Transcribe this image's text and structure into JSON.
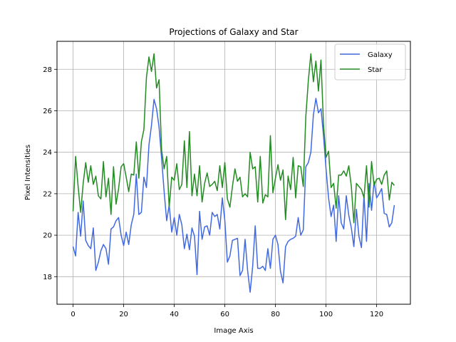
{
  "chart_data": {
    "type": "line",
    "title": "Projections of Galaxy and Star",
    "xlabel": "Image Axis",
    "ylabel": "Pixel Intensities",
    "xlim": [
      -6.35,
      133.35
    ],
    "ylim": [
      16.67,
      29.35
    ],
    "xticks": [
      0,
      20,
      40,
      60,
      80,
      100,
      120
    ],
    "yticks": [
      18,
      20,
      22,
      24,
      26,
      28
    ],
    "grid": true,
    "legend_position": "top-right",
    "series": [
      {
        "name": "Galaxy",
        "color": "#4169e1",
        "values": [
          19.45,
          19.0,
          21.1,
          19.95,
          21.65,
          19.75,
          19.5,
          19.35,
          20.35,
          18.3,
          18.7,
          19.25,
          19.55,
          19.35,
          18.6,
          20.3,
          20.4,
          20.7,
          20.85,
          20.0,
          19.5,
          20.15,
          19.55,
          20.5,
          21.0,
          22.95,
          21.0,
          21.1,
          22.8,
          22.3,
          24.35,
          25.3,
          26.55,
          26.1,
          25.2,
          23.7,
          22.1,
          20.7,
          21.45,
          20.15,
          20.85,
          20.0,
          21.0,
          20.5,
          19.35,
          20.05,
          19.3,
          20.35,
          19.95,
          18.1,
          21.15,
          19.8,
          20.4,
          20.45,
          20.0,
          21.1,
          20.9,
          21.0,
          20.3,
          21.8,
          20.7,
          18.7,
          19.0,
          19.75,
          19.8,
          19.85,
          18.05,
          18.3,
          19.8,
          18.3,
          17.25,
          18.5,
          20.45,
          18.4,
          18.4,
          18.5,
          18.3,
          19.35,
          18.4,
          19.8,
          20.0,
          19.55,
          18.25,
          17.7,
          19.45,
          19.7,
          19.8,
          19.85,
          19.95,
          20.85,
          20.0,
          20.25,
          23.3,
          23.5,
          24.0,
          25.8,
          26.6,
          25.9,
          26.1,
          24.8,
          23.2,
          21.8,
          20.9,
          21.45,
          19.7,
          21.9,
          20.6,
          20.3,
          21.9,
          20.95,
          20.35,
          19.45,
          21.25,
          19.95,
          19.4,
          21.95,
          19.7,
          22.5,
          21.2,
          22.6,
          21.8,
          22.0,
          22.25,
          21.05,
          21.0,
          20.4,
          20.6,
          21.45
        ]
      },
      {
        "name": "Star",
        "color": "#228b22",
        "values": [
          21.15,
          23.8,
          22.35,
          21.1,
          22.5,
          23.5,
          22.55,
          23.35,
          22.45,
          22.85,
          21.9,
          21.75,
          23.55,
          21.85,
          22.75,
          21.0,
          23.3,
          21.5,
          22.25,
          23.3,
          23.45,
          22.8,
          22.1,
          22.95,
          22.9,
          24.5,
          22.75,
          24.5,
          25.1,
          27.6,
          28.6,
          27.9,
          28.75,
          27.1,
          27.5,
          24.1,
          23.2,
          23.8,
          21.35,
          22.8,
          22.65,
          23.45,
          22.2,
          22.45,
          24.55,
          22.3,
          25.0,
          21.9,
          22.95,
          21.9,
          23.35,
          21.6,
          22.5,
          23.0,
          22.35,
          22.45,
          22.6,
          22.15,
          23.35,
          22.3,
          23.5,
          21.75,
          21.35,
          22.35,
          23.2,
          22.6,
          22.8,
          21.85,
          22.0,
          21.85,
          24.0,
          23.2,
          23.3,
          21.6,
          23.8,
          21.55,
          21.95,
          21.85,
          24.8,
          22.05,
          22.75,
          23.4,
          22.65,
          23.15,
          20.75,
          22.85,
          22.2,
          23.75,
          21.8,
          23.35,
          23.3,
          22.35,
          25.7,
          27.45,
          28.75,
          27.4,
          28.4,
          26.95,
          28.45,
          25.35,
          23.75,
          24.05,
          22.3,
          22.5,
          21.3,
          22.9,
          22.9,
          23.1,
          22.85,
          23.35,
          22.35,
          20.6,
          22.5,
          22.35,
          22.2,
          21.8,
          23.35,
          21.35,
          23.55,
          22.4,
          22.7,
          22.75,
          22.45,
          22.9,
          23.1,
          21.7,
          22.55,
          22.4
        ]
      }
    ]
  }
}
